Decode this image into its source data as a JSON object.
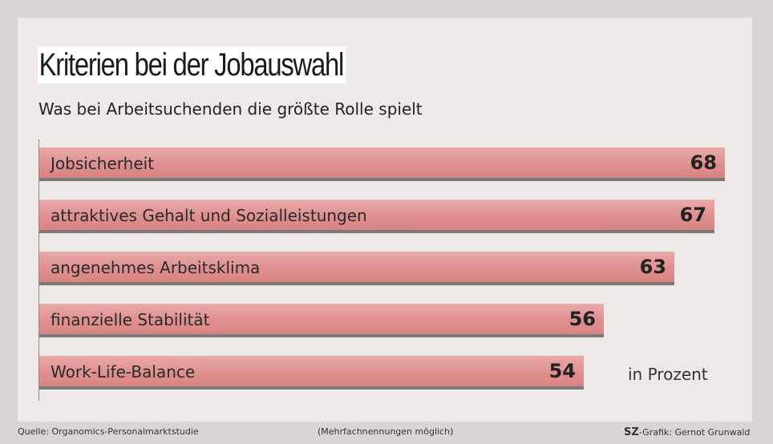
{
  "chart_data": {
    "type": "bar",
    "orientation": "horizontal",
    "title": "Kriterien bei der Jobauswahl",
    "subtitle": "Was bei Arbeitsuchenden die größte Rolle spielt",
    "categories": [
      "Jobsicherheit",
      "attraktives Gehalt und Sozialleistungen",
      "angenehmes Arbeitsklima",
      "finanzielle Stabilität",
      "Work-Life-Balance"
    ],
    "values": [
      68,
      67,
      63,
      56,
      54
    ],
    "unit_label": "in Prozent",
    "xlim": [
      0,
      68
    ],
    "grid": false,
    "legend": "none",
    "colors": {
      "bar": "#de8e8d",
      "bar_shadow": "#7b7b7b",
      "background": "#ece9e6"
    }
  },
  "footer": {
    "source": "Quelle: Organomics-Personalmarktstudie",
    "note": "(Mehrfachnennungen möglich)",
    "brand": "SZ",
    "credit": "-Grafik: Gernot Grunwald"
  }
}
